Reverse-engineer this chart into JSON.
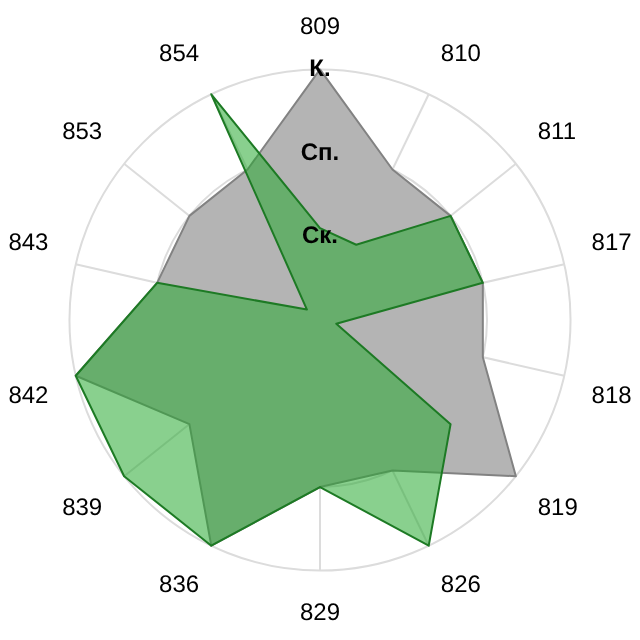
{
  "chart_data": {
    "type": "radar",
    "categories": [
      "809",
      "810",
      "811",
      "817",
      "818",
      "819",
      "826",
      "829",
      "836",
      "839",
      "842",
      "843",
      "853",
      "854"
    ],
    "series": [
      {
        "color": "#b4b4b4",
        "values": [
          3,
          2,
          2,
          2,
          2,
          3,
          2,
          2,
          3,
          2,
          3,
          2,
          2,
          2
        ]
      },
      {
        "color": "#28aa32",
        "values": [
          1.1,
          1,
          2,
          2,
          0.2,
          2,
          3,
          2,
          3,
          3,
          3,
          2,
          0.2,
          3
        ]
      }
    ],
    "ylim": [
      0,
      3
    ],
    "yticks": [
      {
        "value": 1,
        "label": "Ск."
      },
      {
        "value": 2,
        "label": "Сп."
      },
      {
        "value": 3,
        "label": "К."
      }
    ],
    "grid": true,
    "legend": false,
    "marker": "none"
  }
}
